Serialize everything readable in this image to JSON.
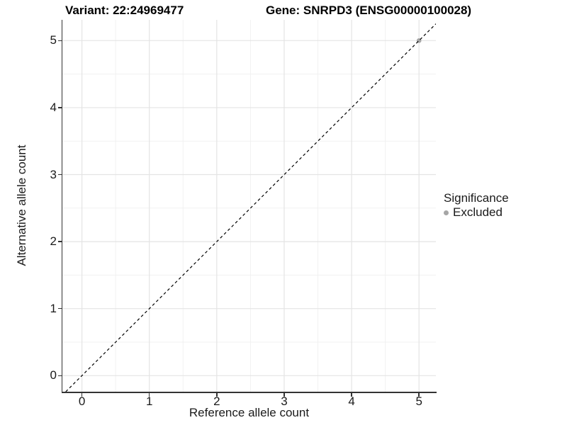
{
  "chart_data": {
    "type": "scatter",
    "title_left": "Variant: 22:24969477",
    "title_right": "Gene: SNRPD3 (ENSG00000100028)",
    "xlabel": "Reference allele count",
    "ylabel": "Alternative allele count",
    "x_ticks": [
      0,
      1,
      2,
      3,
      4,
      5
    ],
    "y_ticks": [
      0,
      1,
      2,
      3,
      4,
      5
    ],
    "x_minor_ticks": [
      0.5,
      1.5,
      2.5,
      3.5,
      4.5
    ],
    "y_minor_ticks": [
      0.5,
      1.5,
      2.5,
      3.5,
      4.5
    ],
    "xlim": [
      -0.29,
      5.25
    ],
    "ylim": [
      -0.24,
      5.31
    ],
    "grid": true,
    "points": [
      {
        "x": 5,
        "y": 5,
        "series": "Excluded"
      }
    ],
    "reference_line": {
      "kind": "identity",
      "slope": 1,
      "intercept": 0,
      "style": "dashed",
      "color": "#000000"
    },
    "legend": {
      "position": "right",
      "title": "Significance",
      "entries": [
        {
          "label": "Excluded",
          "color": "#a6a6a6"
        }
      ]
    },
    "colors": {
      "background": "#ffffff",
      "panel_background": "#ffffff",
      "grid_major": "#e4e4e4",
      "grid_minor": "#f1f1f1",
      "axis_line": "#333333",
      "tick_mark": "#333333",
      "text": "#1a1a1a",
      "title_text": "#000000",
      "point_excluded": "#a6a6a6"
    }
  }
}
